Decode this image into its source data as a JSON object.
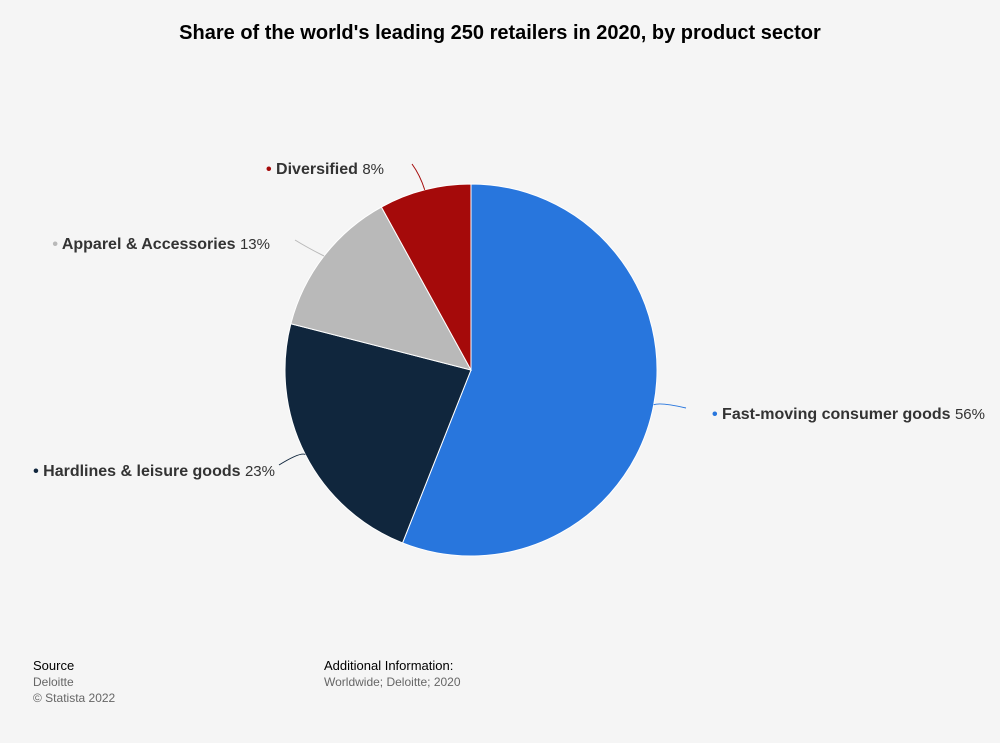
{
  "chart_data": {
    "type": "pie",
    "title": "Share of the world's leading 250 retailers in 2020, by product sector",
    "slices": [
      {
        "label": "Fast-moving consumer goods",
        "value": 56,
        "display": "56%",
        "color": "#2876dd"
      },
      {
        "label": "Hardlines & leisure goods",
        "value": 23,
        "display": "23%",
        "color": "#10263d"
      },
      {
        "label": "Apparel & Accessories",
        "value": 13,
        "display": "13%",
        "color": "#b9b9b9"
      },
      {
        "label": "Diversified",
        "value": 8,
        "display": "8%",
        "color": "#a50a0a"
      }
    ],
    "legend": "none",
    "start_angle": "12 o'clock",
    "direction": "clockwise"
  },
  "footer": {
    "source_heading": "Source",
    "source_name": "Deloitte",
    "copyright": "© Statista 2022",
    "info_heading": "Additional Information:",
    "info_text": "Worldwide; Deloitte; 2020"
  }
}
